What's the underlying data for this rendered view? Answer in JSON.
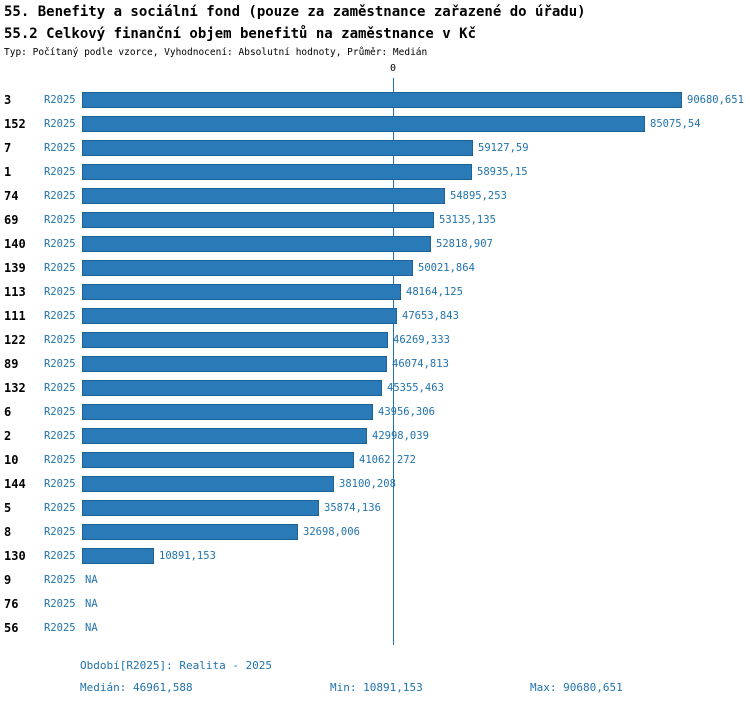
{
  "header": {
    "title_line1": "55. Benefity a sociální fond (pouze za zaměstnance zařazené do úřadu)",
    "title_line2": "55.2 Celkový finanční objem benefitů na zaměstnance v Kč",
    "subtitle": "Typ: Počítaný podle vzorce, Vyhodnocení: Absolutní hodnoty, Průměr: Medián"
  },
  "chart_data": {
    "type": "bar",
    "orientation": "horizontal",
    "title": "55.2 Celkový finanční objem benefitů na zaměstnance v Kč",
    "period_label": "R2025",
    "axis_zero_label": "0",
    "xlim": [
      0,
      90680.651
    ],
    "median": 46961.588,
    "min": 10891.153,
    "max": 90680.651,
    "rows": [
      {
        "id": "3",
        "value": 90680.651,
        "value_label": "90680,651"
      },
      {
        "id": "152",
        "value": 85075.54,
        "value_label": "85075,54"
      },
      {
        "id": "7",
        "value": 59127.59,
        "value_label": "59127,59"
      },
      {
        "id": "1",
        "value": 58935.15,
        "value_label": "58935,15"
      },
      {
        "id": "74",
        "value": 54895.253,
        "value_label": "54895,253"
      },
      {
        "id": "69",
        "value": 53135.135,
        "value_label": "53135,135"
      },
      {
        "id": "140",
        "value": 52818.907,
        "value_label": "52818,907"
      },
      {
        "id": "139",
        "value": 50021.864,
        "value_label": "50021,864"
      },
      {
        "id": "113",
        "value": 48164.125,
        "value_label": "48164,125"
      },
      {
        "id": "111",
        "value": 47653.843,
        "value_label": "47653,843"
      },
      {
        "id": "122",
        "value": 46269.333,
        "value_label": "46269,333"
      },
      {
        "id": "89",
        "value": 46074.813,
        "value_label": "46074,813"
      },
      {
        "id": "132",
        "value": 45355.463,
        "value_label": "45355,463"
      },
      {
        "id": "6",
        "value": 43956.306,
        "value_label": "43956,306"
      },
      {
        "id": "2",
        "value": 42998.039,
        "value_label": "42998,039"
      },
      {
        "id": "10",
        "value": 41062.272,
        "value_label": "41062,272"
      },
      {
        "id": "144",
        "value": 38100.208,
        "value_label": "38100,208"
      },
      {
        "id": "5",
        "value": 35874.136,
        "value_label": "35874,136"
      },
      {
        "id": "8",
        "value": 32698.006,
        "value_label": "32698,006"
      },
      {
        "id": "130",
        "value": 10891.153,
        "value_label": "10891,153"
      },
      {
        "id": "9",
        "value": null,
        "value_label": "NA"
      },
      {
        "id": "76",
        "value": null,
        "value_label": "NA"
      },
      {
        "id": "56",
        "value": null,
        "value_label": "NA"
      }
    ],
    "colors": {
      "bar": "#2b7ab8",
      "bar_border": "#1d639a",
      "accent": "#2173ae"
    }
  },
  "footer": {
    "period": "Období[R2025]: Realita - 2025",
    "median": "Medián: 46961,588",
    "min": "Min: 10891,153",
    "max": "Max: 90680,651"
  }
}
